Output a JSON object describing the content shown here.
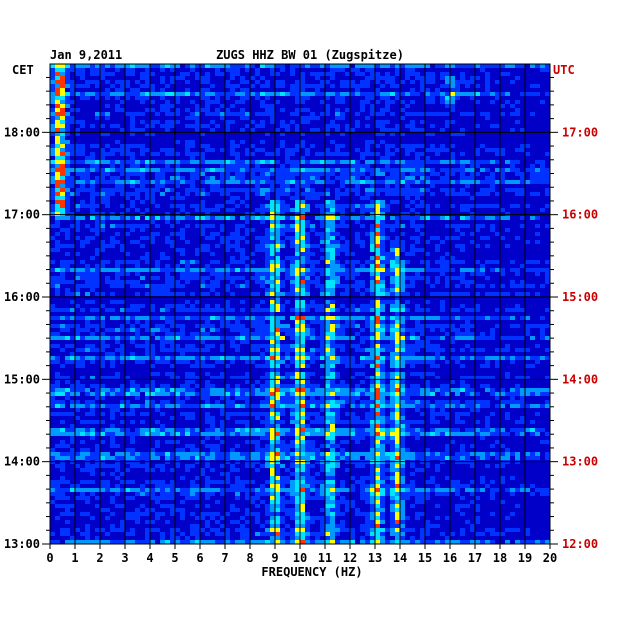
{
  "chart_data": {
    "type": "heatmap",
    "title": "ZUGS HHZ BW 01 (Zugspitze)",
    "date": "Jan 9,2011",
    "xlabel": "FREQUENCY (HZ)",
    "x_ticks": [
      "0",
      "1",
      "2",
      "3",
      "4",
      "5",
      "6",
      "7",
      "8",
      "9",
      "10",
      "11",
      "12",
      "13",
      "14",
      "15",
      "16",
      "17",
      "18",
      "19",
      "20"
    ],
    "xlim": [
      0,
      20
    ],
    "left_axis": {
      "label": "CET",
      "ticks": [
        "18:00",
        "17:00",
        "16:00",
        "15:00",
        "14:00",
        "13:00"
      ],
      "tick_hours": [
        18,
        17,
        16,
        15,
        14,
        13
      ]
    },
    "right_axis": {
      "label": "UTC",
      "ticks": [
        "17:00",
        "16:00",
        "15:00",
        "14:00",
        "13:00",
        "12:00"
      ],
      "tick_hours": [
        17,
        16,
        15,
        14,
        13,
        12
      ]
    },
    "time_range_cet": [
      13.0,
      18.83
    ],
    "colormap": [
      "#00007a",
      "#0000c8",
      "#0033ff",
      "#0099ff",
      "#00e5ff",
      "#ffff00",
      "#ff3300"
    ],
    "background_color": "#0000c8",
    "grid": true,
    "grid_color": "#000000",
    "prominent_bands_hz": [
      {
        "center": 0.4,
        "relative_intensity": 0.9,
        "time_range_cet": [
          17.0,
          18.83
        ]
      },
      {
        "center": 9.0,
        "relative_intensity": 0.6,
        "time_range_cet": [
          13.0,
          17.2
        ]
      },
      {
        "center": 10.0,
        "relative_intensity": 0.65,
        "time_range_cet": [
          13.0,
          17.2
        ]
      },
      {
        "center": 11.2,
        "relative_intensity": 0.5,
        "time_range_cet": [
          13.0,
          17.2
        ]
      },
      {
        "center": 13.1,
        "relative_intensity": 0.6,
        "time_range_cet": [
          13.0,
          17.2
        ]
      },
      {
        "center": 13.9,
        "relative_intensity": 0.5,
        "time_range_cet": [
          13.0,
          16.6
        ]
      },
      {
        "center": 16.0,
        "relative_intensity": 0.3,
        "time_range_cet": [
          18.3,
          18.7
        ]
      }
    ],
    "axis_text_color": "#000000",
    "utc_text_color": "#cc0000"
  }
}
